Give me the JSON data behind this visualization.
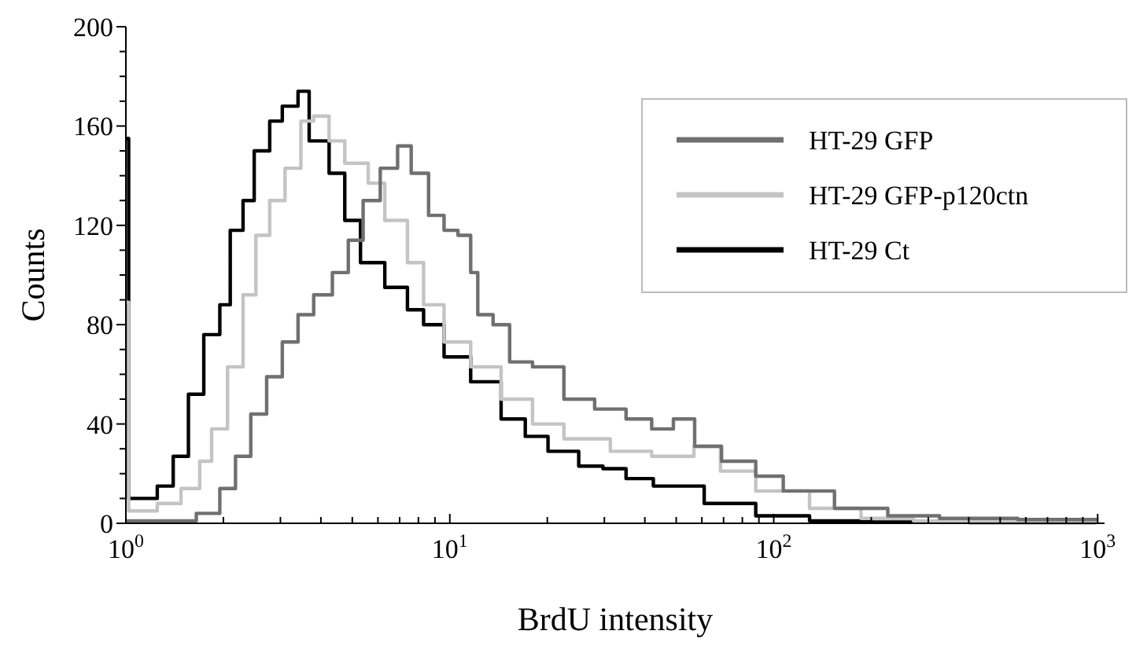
{
  "chart_data": {
    "type": "step",
    "xlabel": "BrdU intensity",
    "ylabel": "Counts",
    "log": "x",
    "xlim": [
      1,
      1050
    ],
    "ylim": [
      0,
      200
    ],
    "xticks": [
      {
        "value": 1,
        "label": "10$^{0}$"
      },
      {
        "value": 2,
        "label": null
      },
      {
        "value": 3,
        "label": null
      },
      {
        "value": 4,
        "label": null
      },
      {
        "value": 5,
        "label": null
      },
      {
        "value": 6,
        "label": null
      },
      {
        "value": 7,
        "label": null
      },
      {
        "value": 8,
        "label": null
      },
      {
        "value": 9,
        "label": null
      },
      {
        "value": 10,
        "label": "10$^{1}$"
      },
      {
        "value": 20,
        "label": null
      },
      {
        "value": 30,
        "label": null
      },
      {
        "value": 40,
        "label": null
      },
      {
        "value": 50,
        "label": null
      },
      {
        "value": 60,
        "label": null
      },
      {
        "value": 70,
        "label": null
      },
      {
        "value": 80,
        "label": null
      },
      {
        "value": 90,
        "label": null
      },
      {
        "value": 100,
        "label": "10$^{2}$"
      },
      {
        "value": 200,
        "label": null
      },
      {
        "value": 300,
        "label": null
      },
      {
        "value": 400,
        "label": null
      },
      {
        "value": 500,
        "label": null
      },
      {
        "value": 600,
        "label": null
      },
      {
        "value": 700,
        "label": null
      },
      {
        "value": 800,
        "label": null
      },
      {
        "value": 900,
        "label": null
      },
      {
        "value": 1000,
        "label": "10$^{3}$"
      }
    ],
    "yticks": [
      0,
      {
        "value": 10,
        "label": null
      },
      {
        "value": 20,
        "label": null
      },
      {
        "value": 30,
        "label": null
      },
      40,
      {
        "value": 50,
        "label": null
      },
      {
        "value": 60,
        "label": null
      },
      {
        "value": 70,
        "label": null
      },
      80,
      {
        "value": 90,
        "label": null
      },
      {
        "value": 100,
        "label": null
      },
      {
        "value": 110,
        "label": null
      },
      120,
      {
        "value": 130,
        "label": null
      },
      {
        "value": 140,
        "label": null
      },
      {
        "value": 150,
        "label": null
      },
      160,
      {
        "value": 170,
        "label": null
      },
      {
        "value": 180,
        "label": null
      },
      {
        "value": 190,
        "label": null
      },
      200
    ],
    "grid": false,
    "legend": "top right",
    "line_style": "solid",
    "marker": "none",
    "series": [
      {
        "name": "HT-29 GFP",
        "color": "#707070",
        "x": [
          1,
          1.25,
          1.65,
          1.95,
          2.18,
          2.43,
          2.72,
          3.04,
          3.4,
          3.8,
          4.34,
          4.86,
          5.4,
          6.1,
          6.9,
          7.6,
          8.6,
          9.6,
          10.6,
          11.6,
          12.2,
          13.6,
          15.3,
          18,
          22.5,
          28,
          35,
          42,
          49,
          57,
          69,
          88,
          107,
          154,
          225,
          325,
          567,
          990
        ],
        "values": [
          1,
          1,
          4,
          14,
          27,
          44,
          59,
          73,
          84,
          92,
          101,
          114,
          130,
          143,
          152,
          141,
          124,
          118,
          116,
          101,
          84,
          80,
          65,
          63,
          50,
          46,
          42,
          38,
          42,
          31,
          25,
          19,
          13,
          6,
          3,
          2,
          1.5,
          1
        ]
      },
      {
        "name": "HT-29 GFP-p120ctn",
        "color": "#c4c4c4",
        "x": [
          1,
          1.02,
          1.25,
          1.48,
          1.69,
          1.84,
          2.06,
          2.3,
          2.52,
          2.78,
          3.1,
          3.47,
          3.8,
          4.24,
          4.74,
          5.6,
          6.3,
          7.4,
          8.3,
          9.6,
          11.6,
          14.4,
          18,
          22.5,
          31.3,
          42,
          56.7,
          68.5,
          88,
          129,
          186,
          270,
          600,
          990
        ],
        "values": [
          89,
          5,
          8,
          14,
          25,
          38,
          63,
          92,
          116,
          130,
          143,
          162,
          164,
          154,
          145,
          137,
          122,
          105,
          88,
          73,
          63,
          50,
          40,
          34,
          29,
          27,
          31,
          21,
          13,
          6,
          2,
          1,
          1,
          0.5
        ]
      },
      {
        "name": "HT-29 Ct",
        "color": "#000000",
        "x": [
          1,
          1.02,
          1.25,
          1.4,
          1.56,
          1.74,
          1.95,
          2.1,
          2.3,
          2.49,
          2.78,
          3.04,
          3.4,
          3.68,
          4.24,
          4.74,
          5.3,
          6.3,
          7.4,
          8.3,
          9.6,
          11.6,
          14.4,
          17.1,
          20.1,
          25,
          29.7,
          35,
          42.5,
          61,
          88,
          129,
          200,
          400,
          990
        ],
        "values": [
          155,
          10,
          15,
          27,
          52,
          76,
          88,
          118,
          130,
          150,
          162,
          168,
          174,
          154,
          141,
          122,
          105,
          95,
          86,
          80,
          67,
          57,
          42,
          35,
          29,
          23,
          22,
          18,
          15,
          8,
          3,
          1,
          0.5,
          0.3,
          0.3
        ]
      }
    ]
  }
}
